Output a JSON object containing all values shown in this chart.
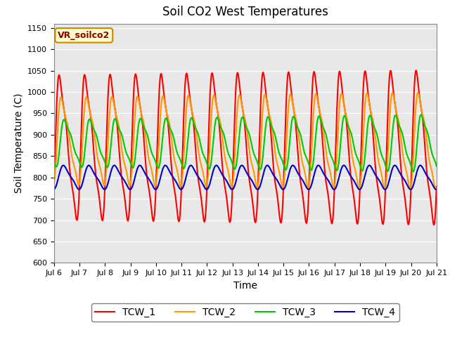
{
  "title": "Soil CO2 West Temperatures",
  "ylabel": "Soil Temperature (C)",
  "xlabel": "Time",
  "legend_label": "VR_soilco2",
  "ylim": [
    600,
    1160
  ],
  "series_colors": [
    "#ff0000",
    "#ff9900",
    "#00cc00",
    "#0000cc"
  ],
  "series_names": [
    "TCW_1",
    "TCW_2",
    "TCW_3",
    "TCW_4"
  ],
  "bg_color": "#e8e8e8",
  "fig_color": "#ffffff",
  "linewidth": 1.5,
  "title_fontsize": 12,
  "axis_fontsize": 10,
  "tick_fontsize": 8,
  "legend_fontsize": 10
}
